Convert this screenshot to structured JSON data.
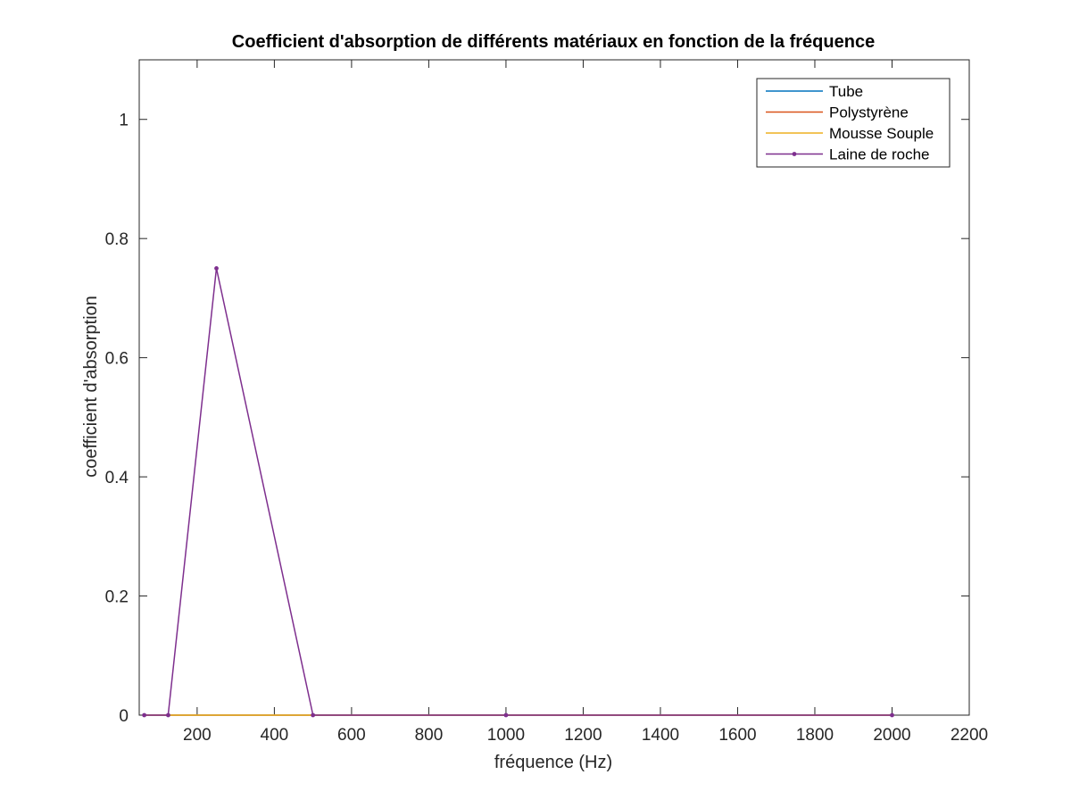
{
  "chart_data": {
    "type": "line",
    "title": "Coefficient d'absorption de différents matériaux en fonction de la fréquence",
    "xlabel": "fréquence (Hz)",
    "ylabel": "coefficient d'absorption",
    "xlim": [
      50,
      2200
    ],
    "ylim": [
      0,
      1.1
    ],
    "xticks": [
      200,
      400,
      600,
      800,
      1000,
      1200,
      1400,
      1600,
      1800,
      2000,
      2200
    ],
    "xtick_labels": [
      "200",
      "400",
      "600",
      "800",
      "1000",
      "1200",
      "1400",
      "1600",
      "1800",
      "2000",
      "2200"
    ],
    "yticks": [
      0,
      0.2,
      0.4,
      0.6,
      0.8,
      1
    ],
    "ytick_labels": [
      "0",
      "0.2",
      "0.4",
      "0.6",
      "0.8",
      "1"
    ],
    "grid": false,
    "legend_position": "top-right",
    "x": [
      63,
      125,
      250,
      500,
      1000,
      2000
    ],
    "series": [
      {
        "name": "Tube",
        "color": "#0072BD",
        "marker": "none",
        "values": [
          0,
          0,
          0,
          0,
          0,
          0
        ]
      },
      {
        "name": "Polystyrène",
        "color": "#D95319",
        "marker": "none",
        "values": [
          0,
          0,
          0,
          0,
          0,
          0
        ]
      },
      {
        "name": "Mousse Souple",
        "color": "#EDB120",
        "marker": "none",
        "values": [
          0,
          0,
          0,
          0,
          0,
          0
        ]
      },
      {
        "name": "Laine de roche",
        "color": "#7E2F8E",
        "marker": "dot",
        "values": [
          0,
          0,
          0.75,
          0,
          0,
          0
        ]
      }
    ]
  }
}
